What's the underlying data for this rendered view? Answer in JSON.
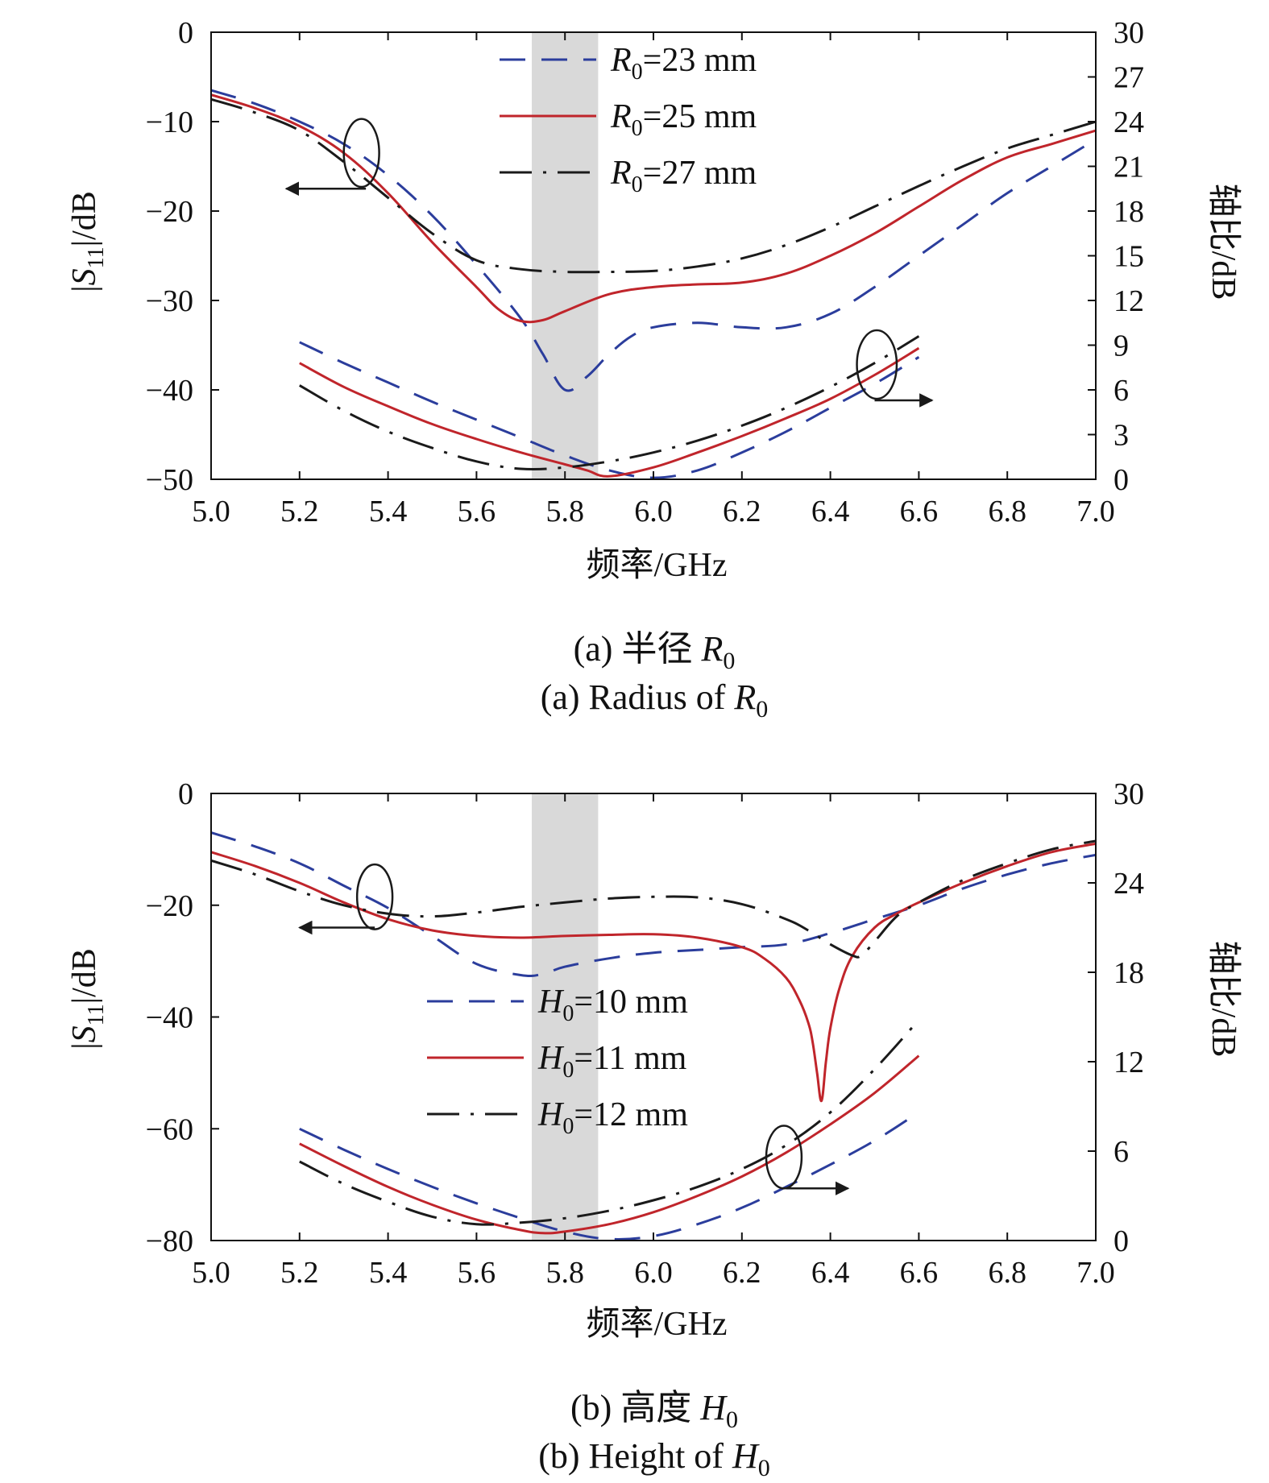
{
  "figure_captions": [
    {
      "zh_prefix": "(a) 半径 ",
      "zh_var": "R",
      "zh_sub": "0",
      "en_prefix": "(a) Radius of ",
      "en_var": "R",
      "en_sub": "0"
    },
    {
      "zh_prefix": "(b) 高度 ",
      "zh_var": "H",
      "zh_sub": "0",
      "en_prefix": "(b) Height of ",
      "en_var": "H",
      "en_sub": "0"
    }
  ],
  "colors": {
    "blue": "#2b3d9c",
    "red": "#c0252b",
    "black": "#1a1a1a",
    "band": "#d9d9d9"
  },
  "chart_data": [
    {
      "type": "line",
      "xlabel": "频率/GHz",
      "ylabel_left": {
        "pre": "|",
        "var": "S",
        "sub": "11",
        "post": "|/dB"
      },
      "ylabel_right": "轴比/dB",
      "xlim": [
        5.0,
        7.0
      ],
      "ylim_left": [
        -50,
        0
      ],
      "ylim_right": [
        0,
        30
      ],
      "x_ticks": [
        "5.0",
        "5.2",
        "5.4",
        "5.6",
        "5.8",
        "6.0",
        "6.2",
        "6.4",
        "6.6",
        "6.8",
        "7.0"
      ],
      "y_ticks_left": [
        "0",
        "−10",
        "−20",
        "−30",
        "−40",
        "−50"
      ],
      "y_ticks_right": [
        "30",
        "27",
        "24",
        "21",
        "18",
        "15",
        "12",
        "9",
        "6",
        "3",
        "0"
      ],
      "shaded_band": [
        5.725,
        5.875
      ],
      "legend_position": "top-center",
      "series": [
        {
          "name": {
            "var": "R",
            "sub": "0",
            "rest": "=23 mm"
          },
          "style": "dashed",
          "color": "blue",
          "axis": "left",
          "x": [
            5.0,
            5.1,
            5.2,
            5.3,
            5.4,
            5.5,
            5.6,
            5.7,
            5.75,
            5.8,
            5.85,
            5.9,
            5.95,
            6.0,
            6.1,
            6.2,
            6.3,
            6.4,
            6.5,
            6.6,
            6.7,
            6.8,
            6.9,
            7.0
          ],
          "y": [
            -6.5,
            -8,
            -10,
            -12.5,
            -16,
            -20.5,
            -26,
            -32,
            -36,
            -40,
            -38.5,
            -36,
            -34,
            -33,
            -32.5,
            -33,
            -33,
            -31.5,
            -28.5,
            -25,
            -21.5,
            -18,
            -15,
            -12
          ]
        },
        {
          "name": {
            "var": "R",
            "sub": "0",
            "rest": "=25 mm"
          },
          "style": "solid",
          "color": "red",
          "axis": "left",
          "x": [
            5.0,
            5.1,
            5.2,
            5.3,
            5.4,
            5.5,
            5.6,
            5.65,
            5.7,
            5.75,
            5.8,
            5.9,
            6.0,
            6.1,
            6.2,
            6.3,
            6.4,
            6.5,
            6.6,
            6.7,
            6.8,
            6.9,
            7.0
          ],
          "y": [
            -7,
            -8.5,
            -10.5,
            -13.5,
            -18,
            -23.5,
            -28.5,
            -31,
            -32.3,
            -32.2,
            -31.2,
            -29.3,
            -28.5,
            -28.2,
            -28,
            -27,
            -25,
            -22.5,
            -19.5,
            -16.5,
            -14,
            -12.5,
            -11
          ]
        },
        {
          "name": {
            "var": "R",
            "sub": "0",
            "rest": "=27 mm"
          },
          "style": "dashdot",
          "color": "black",
          "axis": "left",
          "x": [
            5.0,
            5.1,
            5.2,
            5.3,
            5.4,
            5.5,
            5.6,
            5.7,
            5.8,
            5.9,
            6.0,
            6.1,
            6.2,
            6.3,
            6.4,
            6.5,
            6.6,
            6.7,
            6.8,
            6.9,
            7.0
          ],
          "y": [
            -7.5,
            -9,
            -11,
            -14.5,
            -18.5,
            -22.5,
            -25.5,
            -26.5,
            -26.8,
            -26.8,
            -26.7,
            -26.2,
            -25.3,
            -23.8,
            -21.8,
            -19.5,
            -17.2,
            -15,
            -13,
            -11.5,
            -10
          ]
        },
        {
          "name": "",
          "style": "dashed",
          "color": "blue",
          "axis": "right",
          "x": [
            5.2,
            5.3,
            5.4,
            5.5,
            5.6,
            5.7,
            5.8,
            5.9,
            6.0,
            6.1,
            6.2,
            6.3,
            6.4,
            6.5,
            6.6
          ],
          "y": [
            9.2,
            7.8,
            6.5,
            5.2,
            4,
            2.8,
            1.6,
            0.6,
            0.1,
            0.6,
            1.8,
            3.2,
            4.8,
            6.4,
            8.2
          ]
        },
        {
          "name": "",
          "style": "solid",
          "color": "red",
          "axis": "right",
          "x": [
            5.2,
            5.3,
            5.4,
            5.5,
            5.6,
            5.7,
            5.8,
            5.85,
            5.9,
            6.0,
            6.1,
            6.2,
            6.3,
            6.4,
            6.5,
            6.6
          ],
          "y": [
            7.8,
            6.2,
            4.9,
            3.7,
            2.7,
            1.8,
            1,
            0.6,
            0.2,
            0.8,
            1.8,
            2.9,
            4.1,
            5.4,
            7,
            8.8
          ]
        },
        {
          "name": "",
          "style": "dashdot",
          "color": "black",
          "axis": "right",
          "x": [
            5.2,
            5.3,
            5.4,
            5.5,
            5.6,
            5.7,
            5.8,
            5.9,
            6.0,
            6.1,
            6.2,
            6.3,
            6.4,
            6.5,
            6.6
          ],
          "y": [
            6.3,
            4.6,
            3.2,
            2.1,
            1.2,
            0.7,
            0.8,
            1.2,
            1.8,
            2.6,
            3.6,
            4.8,
            6.2,
            7.8,
            9.6
          ]
        }
      ],
      "annotations": [
        {
          "cx": 5.34,
          "cy": -13.5,
          "rx": 0.04,
          "ry": 3.8,
          "tail": [
            5.35,
            -17.5
          ],
          "tip": [
            5.17,
            -17.5
          ]
        },
        {
          "cx": 6.505,
          "cy": 7.7,
          "rx": 0.045,
          "ry": 2.3,
          "tail": [
            6.5,
            5.3
          ],
          "tip": [
            6.63,
            5.3
          ]
        }
      ]
    },
    {
      "type": "line",
      "xlabel": "频率/GHz",
      "ylabel_left": {
        "pre": "|",
        "var": "S",
        "sub": "11",
        "post": "|/dB"
      },
      "ylabel_right": "轴比/dB",
      "xlim": [
        5.0,
        7.0
      ],
      "ylim_left": [
        -80,
        0
      ],
      "ylim_right": [
        0,
        30
      ],
      "x_ticks": [
        "5.0",
        "5.2",
        "5.4",
        "5.6",
        "5.8",
        "6.0",
        "6.2",
        "6.4",
        "6.6",
        "6.8",
        "7.0"
      ],
      "y_ticks_left": [
        "0",
        "−20",
        "−40",
        "−60",
        "−80"
      ],
      "y_ticks_right": [
        "30",
        "24",
        "18",
        "12",
        "6",
        "0"
      ],
      "shaded_band": [
        5.725,
        5.875
      ],
      "legend_position": "center",
      "series": [
        {
          "name": {
            "var": "H",
            "sub": "0",
            "rest": "=10 mm"
          },
          "style": "dashed",
          "color": "blue",
          "axis": "left",
          "x": [
            5.0,
            5.1,
            5.2,
            5.3,
            5.4,
            5.5,
            5.6,
            5.7,
            5.75,
            5.8,
            5.9,
            6.0,
            6.1,
            6.2,
            6.3,
            6.4,
            6.5,
            6.6,
            6.7,
            6.8,
            6.9,
            7.0
          ],
          "y": [
            -7,
            -9.5,
            -12.5,
            -16.5,
            -20.5,
            -25.5,
            -30.5,
            -32.5,
            -32.3,
            -31,
            -29.5,
            -28.5,
            -28,
            -27.5,
            -27,
            -25,
            -22.5,
            -20,
            -17,
            -14.5,
            -12.5,
            -11
          ]
        },
        {
          "name": {
            "var": "H",
            "sub": "0",
            "rest": "=11 mm"
          },
          "style": "solid",
          "color": "red",
          "axis": "left",
          "x": [
            5.0,
            5.1,
            5.2,
            5.3,
            5.4,
            5.5,
            5.6,
            5.7,
            5.8,
            5.9,
            6.0,
            6.1,
            6.2,
            6.25,
            6.3,
            6.33,
            6.35,
            6.36,
            6.37,
            6.38,
            6.39,
            6.4,
            6.42,
            6.45,
            6.5,
            6.55,
            6.6,
            6.7,
            6.8,
            6.9,
            7.0
          ],
          "y": [
            -10.5,
            -13,
            -16,
            -19.5,
            -22.5,
            -24.5,
            -25.5,
            -25.8,
            -25.5,
            -25.3,
            -25.2,
            -25.8,
            -27.5,
            -29.5,
            -33,
            -37,
            -41,
            -44.5,
            -50,
            -55,
            -48,
            -42,
            -35,
            -29,
            -24,
            -21.5,
            -19.5,
            -16,
            -13,
            -10.5,
            -9
          ]
        },
        {
          "name": {
            "var": "H",
            "sub": "0",
            "rest": "=12 mm"
          },
          "style": "dashdot",
          "color": "black",
          "axis": "left",
          "x": [
            5.0,
            5.1,
            5.2,
            5.3,
            5.4,
            5.5,
            5.6,
            5.7,
            5.8,
            5.9,
            6.0,
            6.1,
            6.2,
            6.3,
            6.35,
            6.4,
            6.45,
            6.47,
            6.5,
            6.55,
            6.6,
            6.7,
            6.8,
            6.9,
            7.0
          ],
          "y": [
            -12,
            -14.5,
            -17.5,
            -20,
            -21.5,
            -22,
            -21.3,
            -20.3,
            -19.5,
            -18.8,
            -18.5,
            -18.6,
            -19.8,
            -22.5,
            -24.5,
            -27,
            -29,
            -29,
            -26.5,
            -22,
            -19.5,
            -15.5,
            -12.5,
            -10,
            -8.5
          ]
        },
        {
          "name": "",
          "style": "dashed",
          "color": "blue",
          "axis": "right",
          "x": [
            5.2,
            5.3,
            5.4,
            5.5,
            5.6,
            5.7,
            5.8,
            5.9,
            6.0,
            6.1,
            6.2,
            6.3,
            6.4,
            6.5,
            6.6
          ],
          "y": [
            7.5,
            6.1,
            4.8,
            3.6,
            2.5,
            1.5,
            0.6,
            0.1,
            0.3,
            1.1,
            2.2,
            3.6,
            5.1,
            6.7,
            8.6
          ]
        },
        {
          "name": "",
          "style": "solid",
          "color": "red",
          "axis": "right",
          "x": [
            5.2,
            5.3,
            5.4,
            5.5,
            5.6,
            5.7,
            5.75,
            5.8,
            5.9,
            6.0,
            6.1,
            6.2,
            6.3,
            6.4,
            6.5,
            6.6
          ],
          "y": [
            6.5,
            5,
            3.6,
            2.4,
            1.4,
            0.7,
            0.5,
            0.6,
            1.1,
            1.9,
            3,
            4.3,
            5.9,
            7.8,
            9.9,
            12.4
          ]
        },
        {
          "name": "",
          "style": "dashdot",
          "color": "black",
          "axis": "right",
          "x": [
            5.2,
            5.3,
            5.4,
            5.5,
            5.6,
            5.7,
            5.8,
            5.9,
            6.0,
            6.1,
            6.2,
            6.3,
            6.4,
            6.5,
            6.6
          ],
          "y": [
            5.3,
            3.8,
            2.6,
            1.6,
            1.1,
            1.2,
            1.5,
            2,
            2.7,
            3.6,
            4.8,
            6.4,
            8.6,
            11.5,
            14.8
          ]
        }
      ],
      "annotations": [
        {
          "cx": 5.37,
          "cy": -18.5,
          "rx": 0.04,
          "ry": 5.8,
          "tail": [
            5.37,
            -24
          ],
          "tip": [
            5.2,
            -24
          ]
        },
        {
          "cx": 6.295,
          "cy": 5.6,
          "rx": 0.04,
          "ry": 2.1,
          "tail": [
            6.3,
            3.5
          ],
          "tip": [
            6.44,
            3.5
          ]
        }
      ]
    }
  ]
}
